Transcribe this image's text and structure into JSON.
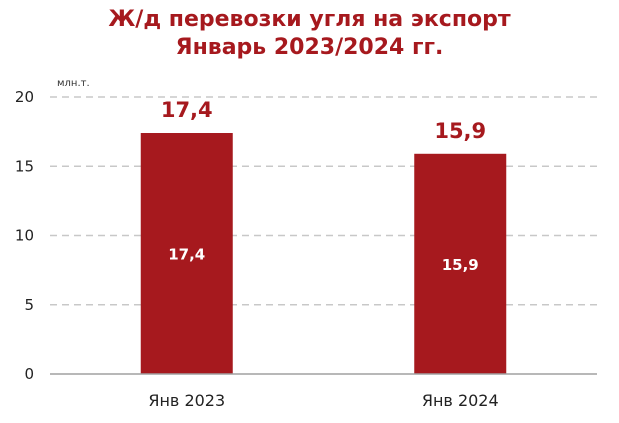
{
  "chart_data": {
    "type": "bar",
    "title": "Ж/д перевозки угля на экспорт",
    "subtitle": "Январь 2023/2024 гг.",
    "unit_label": "млн.т.",
    "categories": [
      "Янв 2023",
      "Янв 2024"
    ],
    "values": [
      17.4,
      15.9
    ],
    "top_labels": [
      "17,4",
      "15,9"
    ],
    "inner_labels": [
      "17,4",
      "15,9"
    ],
    "ylim": [
      0,
      20
    ],
    "yticks": [
      0,
      5,
      10,
      15,
      20
    ],
    "grid": true,
    "gridline_style": "dashed",
    "legend": "none",
    "colors": {
      "bar": "#a6191e",
      "title": "#a6191e",
      "grid": "#c8c8c8",
      "axis": "#a0a0a0"
    }
  }
}
